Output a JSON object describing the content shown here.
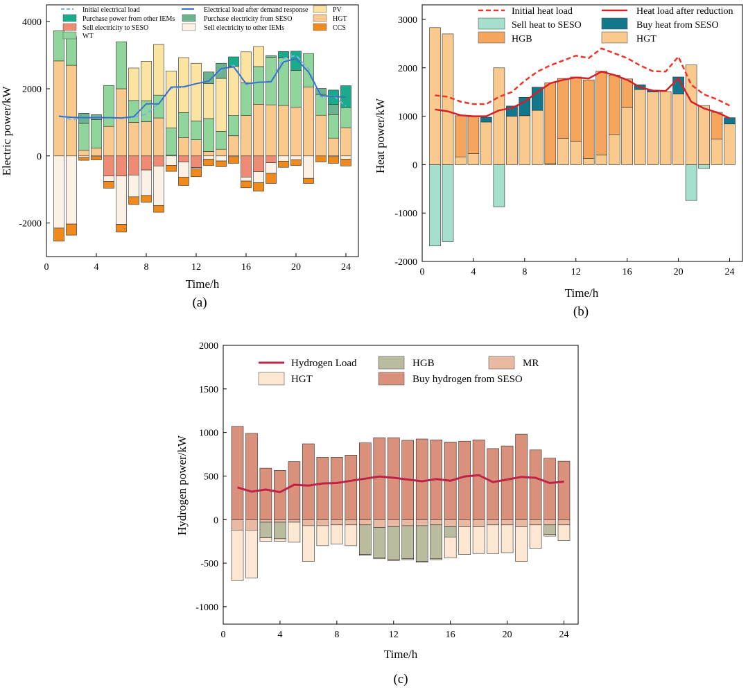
{
  "colors": {
    "pv": "#fbe3a1",
    "hgt": "#f9c98d",
    "ccs": "#f08a1c",
    "wt": "#8fd59c",
    "purchase_iem": "#1aab8a",
    "purchase_seso": "#6cb38f",
    "sell_seso": "#ef8a74",
    "sell_iem": "#fbf1e5",
    "init_load": "#76b4e3",
    "dr_load": "#3a72c9",
    "sell_heat": "#a5dfcd",
    "buy_heat": "#12778a",
    "hgb_heat": "#f6a65c",
    "hgt_heat": "#f9c98d",
    "init_heat": "#ee3428",
    "red_heat": "#d62028",
    "h2_load": "#be2346",
    "hgb_h2": "#bbbba0",
    "mr_h2": "#e9b9a2",
    "hgt_h2": "#fde6d2",
    "buy_h2": "#d9917b"
  },
  "chart_data": [
    {
      "type": "bar",
      "id": "a",
      "caption": "(a)",
      "xlabel": "Time/h",
      "ylabel": "Electric power/kW",
      "xlim": [
        0,
        25
      ],
      "ylim": [
        -3000,
        4500
      ],
      "xticks": [
        "0",
        "4",
        "8",
        "12",
        "16",
        "20",
        "24"
      ],
      "yticks": [
        "-2000",
        "0",
        "2000",
        "4000"
      ],
      "legend": {
        "init_load": "Initial electrical load",
        "dr_load": "Electrical load after demand response",
        "pv": "PV",
        "purchase_iem": "Purchase power from other IEMs",
        "purchase_seso": "Purchase electricity from SESO",
        "hgt": "HGT",
        "sell_seso": "Sell electricity to SESO",
        "sell_iem": "Sell electricity to other IEMs",
        "ccs": "CCS",
        "wt": "WT"
      },
      "hours": [
        1,
        2,
        3,
        4,
        5,
        6,
        7,
        8,
        9,
        10,
        11,
        12,
        13,
        14,
        15,
        16,
        17,
        18,
        19,
        20,
        21,
        22,
        23,
        24
      ],
      "series": [
        {
          "name": "HGT",
          "key": "hgt",
          "stack": "pos",
          "values": [
            2830,
            2700,
            170,
            230,
            880,
            2000,
            1000,
            1020,
            1130,
            20,
            540,
            480,
            130,
            200,
            600,
            1200,
            1540,
            1520,
            1500,
            1450,
            2050,
            1210,
            530,
            840
          ]
        },
        {
          "name": "WT",
          "key": "wt",
          "stack": "pos",
          "values": [
            900,
            850,
            800,
            850,
            1220,
            1400,
            650,
            620,
            680,
            810,
            750,
            560,
            980,
            530,
            600,
            980,
            1120,
            1420,
            1420,
            1100,
            1000,
            620,
            700,
            600
          ]
        },
        {
          "name": "PV",
          "key": "pv",
          "stack": "pos",
          "values": [
            0,
            0,
            0,
            0,
            0,
            0,
            970,
            1180,
            1510,
            1700,
            1640,
            1720,
            1040,
            1580,
            1470,
            920,
            600,
            0,
            0,
            0,
            0,
            0,
            0,
            0
          ]
        },
        {
          "name": "Purchase electricity from SESO",
          "key": "purchase_seso",
          "stack": "pos",
          "values": [
            0,
            0,
            300,
            150,
            0,
            0,
            0,
            0,
            0,
            0,
            0,
            0,
            350,
            450,
            0,
            0,
            0,
            50,
            0,
            0,
            0,
            180,
            300,
            0
          ]
        },
        {
          "name": "Purchase power from other IEMs",
          "key": "purchase_iem",
          "stack": "pos",
          "values": [
            0,
            0,
            0,
            0,
            0,
            0,
            0,
            0,
            0,
            0,
            0,
            0,
            0,
            0,
            280,
            0,
            0,
            0,
            190,
            570,
            0,
            0,
            430,
            650
          ]
        },
        {
          "name": "Sell electricity to SESO",
          "key": "sell_seso",
          "stack": "neg",
          "values": [
            0,
            0,
            0,
            0,
            -600,
            -600,
            -570,
            -420,
            -300,
            0,
            -180,
            -350,
            0,
            0,
            0,
            -630,
            -470,
            -200,
            0,
            0,
            0,
            0,
            0,
            0
          ]
        },
        {
          "name": "Sell electricity to other IEMs",
          "key": "sell_iem",
          "stack": "neg",
          "values": [
            -2150,
            -2030,
            -50,
            -20,
            -160,
            -1440,
            -650,
            -760,
            -1180,
            -280,
            -450,
            -40,
            -100,
            -150,
            -20,
            -120,
            -330,
            -320,
            -160,
            -120,
            -670,
            0,
            -20,
            -100
          ]
        },
        {
          "name": "CCS",
          "key": "ccs",
          "stack": "neg",
          "values": [
            -390,
            -330,
            -80,
            -100,
            -200,
            -230,
            -230,
            -200,
            -200,
            -180,
            -250,
            -230,
            -190,
            -170,
            -200,
            -200,
            -250,
            -300,
            -180,
            -170,
            -150,
            -180,
            -200,
            -200
          ]
        },
        {
          "name": "Initial electrical load",
          "key": "init_load",
          "line": "dashed",
          "values": [
            1200,
            1080,
            1150,
            1120,
            1130,
            1120,
            1150,
            1250,
            1560,
            2020,
            2050,
            2150,
            2230,
            2550,
            2700,
            2120,
            2200,
            2200,
            2900,
            3000,
            2600,
            1750,
            1800,
            1480
          ]
        },
        {
          "name": "Electrical load after demand response",
          "key": "dr_load",
          "line": "solid",
          "values": [
            1180,
            1150,
            1140,
            1140,
            1140,
            1130,
            1170,
            1550,
            1550,
            2050,
            2060,
            2150,
            2230,
            2600,
            2650,
            2150,
            2190,
            2210,
            2800,
            2900,
            2500,
            1800,
            1770,
            1750
          ]
        }
      ]
    },
    {
      "type": "bar",
      "id": "b",
      "caption": "(b)",
      "xlabel": "Time/h",
      "ylabel": "Heat power/kW",
      "xlim": [
        0,
        25
      ],
      "ylim": [
        -2000,
        3300
      ],
      "xticks": [
        "0",
        "4",
        "8",
        "12",
        "16",
        "20",
        "24"
      ],
      "yticks": [
        "-2000",
        "-1000",
        "0",
        "1000",
        "2000",
        "3000"
      ],
      "legend": {
        "init_heat": "Initial heat load",
        "red_heat": "Heat load after reduction",
        "sell_heat": "Sell heat to SESO",
        "buy_heat": "Buy heat from SESO",
        "hgb_heat": "HGB",
        "hgt_heat": "HGT"
      },
      "hours": [
        1,
        2,
        3,
        4,
        5,
        6,
        7,
        8,
        9,
        10,
        11,
        12,
        13,
        14,
        15,
        16,
        17,
        18,
        19,
        20,
        21,
        22,
        23,
        24
      ],
      "series": [
        {
          "name": "HGT",
          "key": "hgt_heat",
          "stack": "pos",
          "values": [
            2830,
            2700,
            160,
            230,
            880,
            2000,
            1000,
            1010,
            1120,
            20,
            540,
            480,
            130,
            200,
            620,
            1180,
            1550,
            1500,
            1510,
            1460,
            2060,
            1220,
            530,
            840
          ]
        },
        {
          "name": "HGB",
          "key": "hgb_heat",
          "stack": "pos",
          "values": [
            0,
            0,
            850,
            760,
            0,
            0,
            0,
            0,
            0,
            1670,
            1240,
            1330,
            1620,
            1730,
            1230,
            590,
            0,
            0,
            0,
            0,
            0,
            0,
            550,
            0
          ]
        },
        {
          "name": "Buy heat from SESO",
          "key": "buy_heat",
          "stack": "pos",
          "values": [
            0,
            0,
            0,
            0,
            100,
            0,
            210,
            380,
            480,
            0,
            0,
            0,
            0,
            0,
            0,
            0,
            100,
            40,
            0,
            350,
            0,
            0,
            0,
            130
          ]
        },
        {
          "name": "Sell heat to SESO",
          "key": "sell_heat",
          "stack": "neg",
          "values": [
            -1680,
            -1590,
            0,
            0,
            0,
            -870,
            0,
            0,
            0,
            0,
            0,
            0,
            0,
            0,
            0,
            0,
            0,
            0,
            0,
            0,
            -740,
            -80,
            0,
            0
          ]
        },
        {
          "name": "Initial heat load",
          "key": "init_heat",
          "line": "dashed",
          "values": [
            1430,
            1400,
            1300,
            1250,
            1250,
            1400,
            1500,
            1730,
            1920,
            2050,
            2150,
            2250,
            2200,
            2400,
            2300,
            2200,
            2050,
            1930,
            1920,
            2230,
            1650,
            1450,
            1350,
            1220
          ]
        },
        {
          "name": "Heat load after reduction",
          "key": "red_heat",
          "line": "solid",
          "values": [
            1140,
            1100,
            1020,
            1000,
            1000,
            1120,
            1170,
            1300,
            1500,
            1680,
            1750,
            1800,
            1780,
            1920,
            1850,
            1750,
            1600,
            1530,
            1520,
            1780,
            1300,
            1160,
            1080,
            960
          ]
        }
      ]
    },
    {
      "type": "bar",
      "id": "c",
      "caption": "(c)",
      "xlabel": "Time/h",
      "ylabel": "Hydrogen power/kW",
      "xlim": [
        0,
        25
      ],
      "ylim": [
        -1200,
        2000
      ],
      "xticks": [
        "0",
        "4",
        "8",
        "12",
        "16",
        "20",
        "24"
      ],
      "yticks": [
        "-1000",
        "-500",
        "0",
        "500",
        "1000",
        "1500",
        "2000"
      ],
      "legend": {
        "h2_load": "Hydrogen Load",
        "hgb_h2": "HGB",
        "mr_h2": "MR",
        "hgt_h2": "HGT",
        "buy_h2": "Buy hydrogen from SESO"
      },
      "hours": [
        1,
        2,
        3,
        4,
        5,
        6,
        7,
        8,
        9,
        10,
        11,
        12,
        13,
        14,
        15,
        16,
        17,
        18,
        19,
        20,
        21,
        22,
        23,
        24
      ],
      "series": [
        {
          "name": "Buy hydrogen from SESO",
          "key": "buy_h2",
          "stack": "pos",
          "values": [
            1070,
            990,
            590,
            565,
            665,
            870,
            715,
            715,
            740,
            880,
            940,
            940,
            910,
            925,
            915,
            890,
            900,
            915,
            815,
            845,
            980,
            800,
            705,
            670
          ]
        },
        {
          "name": "MR",
          "key": "mr_h2",
          "stack": "neg",
          "values": [
            -120,
            -120,
            -30,
            -30,
            -30,
            -70,
            -70,
            -60,
            -60,
            -60,
            -90,
            -80,
            -70,
            -70,
            -60,
            -80,
            -80,
            -80,
            -60,
            -60,
            -80,
            -60,
            -60,
            -60
          ]
        },
        {
          "name": "HGB",
          "key": "hgb_h2",
          "stack": "neg",
          "values": [
            0,
            0,
            -180,
            -190,
            0,
            0,
            0,
            0,
            0,
            -340,
            -350,
            -380,
            -380,
            -410,
            -390,
            -120,
            0,
            0,
            0,
            0,
            0,
            0,
            -110,
            0
          ]
        },
        {
          "name": "HGT",
          "key": "hgt_h2",
          "stack": "neg",
          "values": [
            -580,
            -550,
            -40,
            -30,
            -230,
            -410,
            -230,
            -220,
            -240,
            -10,
            -10,
            -10,
            -10,
            -10,
            -10,
            -240,
            -320,
            -310,
            -330,
            -320,
            -400,
            -270,
            -20,
            -180
          ]
        },
        {
          "name": "Hydrogen Load",
          "key": "h2_load",
          "line": "solid",
          "values": [
            370,
            320,
            345,
            315,
            400,
            390,
            415,
            420,
            445,
            470,
            495,
            480,
            460,
            440,
            465,
            445,
            495,
            510,
            430,
            460,
            490,
            480,
            420,
            435
          ]
        }
      ]
    }
  ]
}
